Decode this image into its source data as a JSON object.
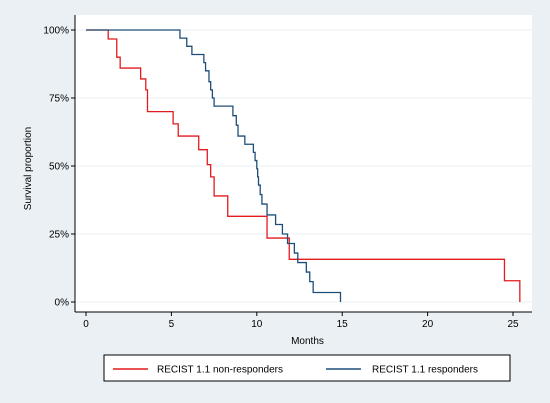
{
  "chart_data": {
    "type": "line",
    "title": "",
    "xlabel": "Months",
    "ylabel": "Survival proportion",
    "xlim": [
      0,
      25.7
    ],
    "ylim": [
      0,
      1
    ],
    "x_ticks": [
      {
        "value": 0,
        "label": "0"
      },
      {
        "value": 5,
        "label": "5"
      },
      {
        "value": 10,
        "label": "10"
      },
      {
        "value": 15,
        "label": "15"
      },
      {
        "value": 20,
        "label": "20"
      },
      {
        "value": 25,
        "label": "25"
      }
    ],
    "y_ticks": [
      {
        "value": 0,
        "label": "0%"
      },
      {
        "value": 0.25,
        "label": "25%"
      },
      {
        "value": 0.5,
        "label": "50%"
      },
      {
        "value": 0.75,
        "label": "75%"
      },
      {
        "value": 1,
        "label": "100%"
      }
    ],
    "grid": {
      "y": true,
      "x": false
    },
    "legend_position": "bottom",
    "colors": {
      "background": "#eaf0f3",
      "plot_background": "#ffffff",
      "grid": "#eaf0f3",
      "axis": "#000000"
    },
    "series": [
      {
        "name": "RECIST 1.1 non-responders",
        "color": "#e41a1c",
        "x": [
          0,
          1.3,
          1.3,
          1.8,
          1.8,
          2.0,
          2.0,
          3.2,
          3.2,
          3.5,
          3.5,
          3.6,
          3.6,
          5.1,
          5.1,
          5.4,
          5.4,
          6.6,
          6.6,
          7.1,
          7.1,
          7.3,
          7.3,
          7.5,
          7.5,
          8.3,
          8.3,
          10.6,
          10.6,
          11.9,
          11.9,
          24.5,
          24.5,
          25.4,
          25.4
        ],
        "y": [
          1,
          1,
          0.967,
          0.967,
          0.9,
          0.9,
          0.86,
          0.86,
          0.82,
          0.82,
          0.78,
          0.78,
          0.7,
          0.7,
          0.655,
          0.655,
          0.61,
          0.61,
          0.56,
          0.56,
          0.505,
          0.505,
          0.46,
          0.46,
          0.39,
          0.39,
          0.315,
          0.315,
          0.235,
          0.235,
          0.157,
          0.157,
          0.078,
          0.078,
          0
        ]
      },
      {
        "name": "RECIST 1.1 responders",
        "color": "#1d4e7a",
        "x": [
          0,
          5.5,
          5.5,
          5.9,
          5.9,
          6.2,
          6.2,
          6.9,
          6.9,
          7.0,
          7.0,
          7.2,
          7.2,
          7.3,
          7.3,
          7.4,
          7.4,
          7.5,
          7.5,
          8.6,
          8.6,
          8.8,
          8.8,
          8.9,
          8.9,
          9.3,
          9.3,
          9.8,
          9.8,
          9.9,
          9.9,
          10.0,
          10.0,
          10.05,
          10.05,
          10.1,
          10.1,
          10.2,
          10.2,
          10.3,
          10.3,
          10.6,
          10.6,
          11.1,
          11.1,
          11.5,
          11.5,
          11.8,
          11.8,
          12.2,
          12.2,
          12.4,
          12.4,
          12.9,
          12.9,
          13.1,
          13.1,
          13.3,
          13.3,
          13.4,
          13.4,
          14.9,
          14.9
        ],
        "y": [
          1,
          1,
          0.97,
          0.97,
          0.94,
          0.94,
          0.91,
          0.91,
          0.88,
          0.88,
          0.85,
          0.85,
          0.81,
          0.81,
          0.78,
          0.78,
          0.75,
          0.75,
          0.72,
          0.72,
          0.685,
          0.685,
          0.65,
          0.65,
          0.61,
          0.61,
          0.58,
          0.58,
          0.55,
          0.55,
          0.52,
          0.52,
          0.49,
          0.49,
          0.46,
          0.46,
          0.43,
          0.43,
          0.395,
          0.395,
          0.36,
          0.36,
          0.32,
          0.32,
          0.285,
          0.285,
          0.25,
          0.25,
          0.215,
          0.215,
          0.18,
          0.18,
          0.145,
          0.145,
          0.11,
          0.11,
          0.075,
          0.075,
          0.035,
          0.035,
          0.035,
          0.035,
          0
        ]
      }
    ]
  }
}
